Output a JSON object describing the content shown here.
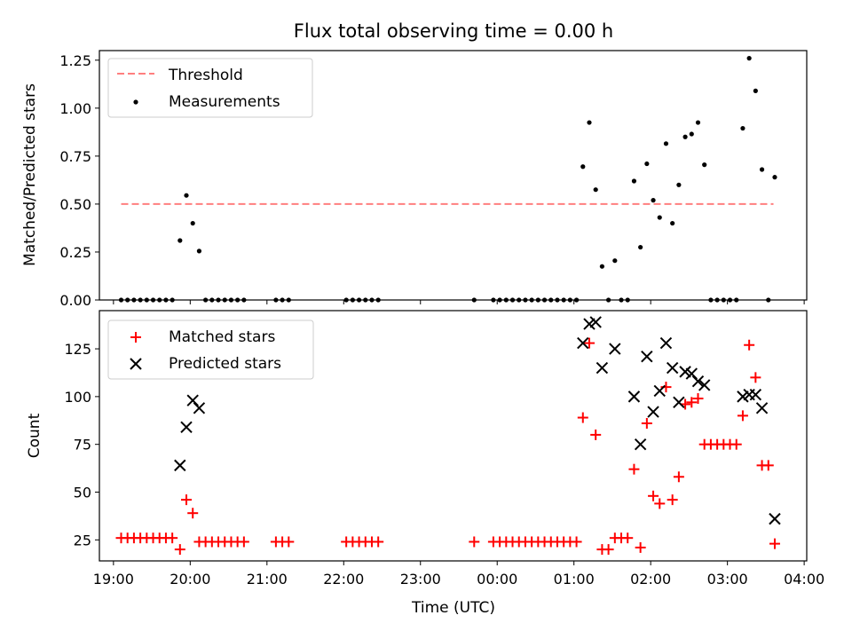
{
  "chart_data": [
    {
      "type": "scatter",
      "title": "Flux total observing time = 0.00 h",
      "xlabel": "",
      "ylabel": "Matched/Predicted stars",
      "xlim": [
        "18:49",
        "04:02"
      ],
      "ylim": [
        0,
        1.3
      ],
      "xticks": [
        "19:00",
        "20:00",
        "21:00",
        "22:00",
        "23:00",
        "00:00",
        "01:00",
        "02:00",
        "03:00",
        "04:00"
      ],
      "yticks": [
        0,
        0.25,
        0.5,
        0.75,
        1.0,
        1.25
      ],
      "ytick_labels": [
        "0.00",
        "0.25",
        "0.50",
        "0.75",
        "1.00",
        "1.25"
      ],
      "legend": {
        "position": "top-left",
        "entries": [
          "Threshold",
          "Measurements"
        ]
      },
      "threshold": {
        "name": "Threshold",
        "y": 0.5,
        "x_start": "19:06",
        "x_end": "03:36",
        "color": "#ff7f7f",
        "style": "dashed"
      },
      "series": [
        {
          "name": "Measurements",
          "color": "#000000",
          "points": [
            [
              "19:06",
              0
            ],
            [
              "19:11",
              0
            ],
            [
              "19:16",
              0
            ],
            [
              "19:21",
              0
            ],
            [
              "19:26",
              0
            ],
            [
              "19:31",
              0
            ],
            [
              "19:36",
              0
            ],
            [
              "19:41",
              0
            ],
            [
              "19:46",
              0
            ],
            [
              "19:52",
              0.31
            ],
            [
              "19:57",
              0.545
            ],
            [
              "20:02",
              0.4
            ],
            [
              "20:07",
              0.255
            ],
            [
              "20:12",
              0
            ],
            [
              "20:17",
              0
            ],
            [
              "20:22",
              0
            ],
            [
              "20:27",
              0
            ],
            [
              "20:32",
              0
            ],
            [
              "20:37",
              0
            ],
            [
              "20:42",
              0
            ],
            [
              "21:07",
              0
            ],
            [
              "21:12",
              0
            ],
            [
              "21:17",
              0
            ],
            [
              "22:02",
              0
            ],
            [
              "22:07",
              0
            ],
            [
              "22:12",
              0
            ],
            [
              "22:17",
              0
            ],
            [
              "22:22",
              0
            ],
            [
              "22:27",
              0
            ],
            [
              "23:42",
              0
            ],
            [
              "23:57",
              0
            ],
            [
              "00:02",
              0
            ],
            [
              "00:07",
              0
            ],
            [
              "00:12",
              0
            ],
            [
              "00:17",
              0
            ],
            [
              "00:22",
              0
            ],
            [
              "00:27",
              0
            ],
            [
              "00:32",
              0
            ],
            [
              "00:37",
              0
            ],
            [
              "00:42",
              0
            ],
            [
              "00:47",
              0
            ],
            [
              "00:52",
              0
            ],
            [
              "00:57",
              0
            ],
            [
              "01:02",
              0
            ],
            [
              "01:07",
              0.695
            ],
            [
              "01:12",
              0.925
            ],
            [
              "01:17",
              0.575
            ],
            [
              "01:22",
              0.175
            ],
            [
              "01:27",
              0
            ],
            [
              "01:32",
              0.205
            ],
            [
              "01:37",
              0
            ],
            [
              "01:42",
              0
            ],
            [
              "01:47",
              0.62
            ],
            [
              "01:52",
              0.275
            ],
            [
              "01:57",
              0.71
            ],
            [
              "02:02",
              0.52
            ],
            [
              "02:07",
              0.43
            ],
            [
              "02:12",
              0.815
            ],
            [
              "02:17",
              0.4
            ],
            [
              "02:22",
              0.6
            ],
            [
              "02:27",
              0.85
            ],
            [
              "02:32",
              0.865
            ],
            [
              "02:37",
              0.925
            ],
            [
              "02:42",
              0.705
            ],
            [
              "02:47",
              0
            ],
            [
              "02:52",
              0
            ],
            [
              "02:57",
              0
            ],
            [
              "03:02",
              0
            ],
            [
              "03:07",
              0
            ],
            [
              "03:12",
              0.895
            ],
            [
              "03:17",
              1.26
            ],
            [
              "03:22",
              1.09
            ],
            [
              "03:27",
              0.68
            ],
            [
              "03:32",
              0
            ],
            [
              "03:37",
              0.64
            ]
          ]
        }
      ]
    },
    {
      "type": "scatter",
      "title": "",
      "xlabel": "Time (UTC)",
      "ylabel": "Count",
      "xlim": [
        "18:49",
        "04:02"
      ],
      "ylim": [
        14,
        145
      ],
      "xticks": [
        "19:00",
        "20:00",
        "21:00",
        "22:00",
        "23:00",
        "00:00",
        "01:00",
        "02:00",
        "03:00",
        "04:00"
      ],
      "yticks": [
        25,
        50,
        75,
        100,
        125
      ],
      "ytick_labels": [
        "25",
        "50",
        "75",
        "100",
        "125"
      ],
      "legend": {
        "position": "top-left",
        "entries": [
          "Matched stars",
          "Predicted stars"
        ]
      },
      "series": [
        {
          "name": "Matched stars",
          "marker": "+",
          "color": "#ff0000",
          "points": [
            [
              "19:06",
              26
            ],
            [
              "19:11",
              26
            ],
            [
              "19:16",
              26
            ],
            [
              "19:21",
              26
            ],
            [
              "19:26",
              26
            ],
            [
              "19:31",
              26
            ],
            [
              "19:36",
              26
            ],
            [
              "19:41",
              26
            ],
            [
              "19:46",
              26
            ],
            [
              "19:52",
              20
            ],
            [
              "19:57",
              46
            ],
            [
              "20:02",
              39
            ],
            [
              "20:07",
              24
            ],
            [
              "20:12",
              24
            ],
            [
              "20:17",
              24
            ],
            [
              "20:22",
              24
            ],
            [
              "20:27",
              24
            ],
            [
              "20:32",
              24
            ],
            [
              "20:37",
              24
            ],
            [
              "20:42",
              24
            ],
            [
              "21:07",
              24
            ],
            [
              "21:12",
              24
            ],
            [
              "21:17",
              24
            ],
            [
              "22:02",
              24
            ],
            [
              "22:07",
              24
            ],
            [
              "22:12",
              24
            ],
            [
              "22:17",
              24
            ],
            [
              "22:22",
              24
            ],
            [
              "22:27",
              24
            ],
            [
              "23:42",
              24
            ],
            [
              "23:57",
              24
            ],
            [
              "00:02",
              24
            ],
            [
              "00:07",
              24
            ],
            [
              "00:12",
              24
            ],
            [
              "00:17",
              24
            ],
            [
              "00:22",
              24
            ],
            [
              "00:27",
              24
            ],
            [
              "00:32",
              24
            ],
            [
              "00:37",
              24
            ],
            [
              "00:42",
              24
            ],
            [
              "00:47",
              24
            ],
            [
              "00:52",
              24
            ],
            [
              "00:57",
              24
            ],
            [
              "01:02",
              24
            ],
            [
              "01:07",
              89
            ],
            [
              "01:12",
              128
            ],
            [
              "01:17",
              80
            ],
            [
              "01:22",
              20
            ],
            [
              "01:27",
              20
            ],
            [
              "01:32",
              26
            ],
            [
              "01:37",
              26
            ],
            [
              "01:42",
              26
            ],
            [
              "01:47",
              62
            ],
            [
              "01:52",
              21
            ],
            [
              "01:57",
              86
            ],
            [
              "02:02",
              48
            ],
            [
              "02:07",
              44
            ],
            [
              "02:12",
              105
            ],
            [
              "02:17",
              46
            ],
            [
              "02:22",
              58
            ],
            [
              "02:27",
              96
            ],
            [
              "02:32",
              97
            ],
            [
              "02:37",
              99
            ],
            [
              "02:42",
              75
            ],
            [
              "02:47",
              75
            ],
            [
              "02:52",
              75
            ],
            [
              "02:57",
              75
            ],
            [
              "03:02",
              75
            ],
            [
              "03:07",
              75
            ],
            [
              "03:12",
              90
            ],
            [
              "03:17",
              127
            ],
            [
              "03:22",
              110
            ],
            [
              "03:27",
              64
            ],
            [
              "03:32",
              64
            ],
            [
              "03:37",
              23
            ]
          ]
        },
        {
          "name": "Predicted stars",
          "marker": "x",
          "color": "#000000",
          "points": [
            [
              "19:52",
              64
            ],
            [
              "19:57",
              84
            ],
            [
              "20:02",
              98
            ],
            [
              "20:07",
              94
            ],
            [
              "01:07",
              128
            ],
            [
              "01:12",
              138
            ],
            [
              "01:17",
              139
            ],
            [
              "01:22",
              115
            ],
            [
              "01:32",
              125
            ],
            [
              "01:47",
              100
            ],
            [
              "01:52",
              75
            ],
            [
              "01:57",
              121
            ],
            [
              "02:02",
              92
            ],
            [
              "02:07",
              103
            ],
            [
              "02:12",
              128
            ],
            [
              "02:17",
              115
            ],
            [
              "02:22",
              97
            ],
            [
              "02:27",
              113
            ],
            [
              "02:32",
              112
            ],
            [
              "02:37",
              108
            ],
            [
              "02:42",
              106
            ],
            [
              "03:12",
              100
            ],
            [
              "03:17",
              101
            ],
            [
              "03:22",
              101
            ],
            [
              "03:27",
              94
            ],
            [
              "03:37",
              36
            ]
          ]
        }
      ]
    }
  ]
}
